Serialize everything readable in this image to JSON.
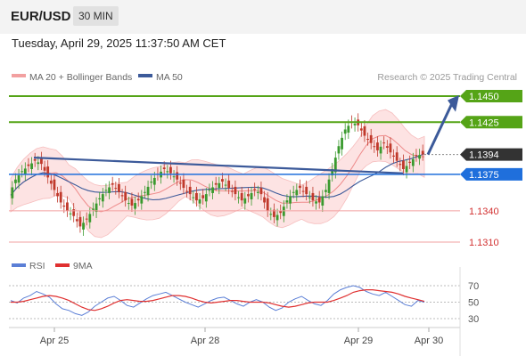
{
  "header": {
    "pair": "EUR/USD",
    "timeframe": "30 MIN",
    "datetime": "Tuesday, April 29, 2025 11:37:50 AM CET"
  },
  "legend": {
    "ma20_label": "MA 20 + Bollinger Bands",
    "ma50_label": "MA 50",
    "credit": "Research © 2025 Trading Central",
    "rsi_label": "RSI",
    "ma9_label": "9MA"
  },
  "colors": {
    "resistance_green": "#55a417",
    "support_red": "#f2a0a0",
    "ma50_blue": "#3c5a9a",
    "bollinger_fill": "#fde3e3",
    "ma20_red": "#ee8a8a",
    "current_price_bg": "#333333",
    "pivot_blue": "#1f6fdc",
    "up_candle": "#3a9a2e",
    "down_candle": "#c0392b",
    "rsi_line": "#5b7fd6",
    "rsi_ma_line": "#e03030"
  },
  "chart_data": {
    "type": "candlestick",
    "x_ticks": [
      "Apr 25",
      "Apr 28",
      "Apr 29",
      "Apr 30"
    ],
    "price_ylim": [
      1.3275,
      1.1472
    ],
    "levels": [
      {
        "name": "resistance-2",
        "value": 1.145,
        "label": "1.1450",
        "kind": "resistance"
      },
      {
        "name": "resistance-1",
        "value": 1.1425,
        "label": "1.1425",
        "kind": "resistance"
      },
      {
        "name": "current-price",
        "value": 1.1394,
        "label": "1.1394",
        "kind": "current"
      },
      {
        "name": "pivot",
        "value": 1.1375,
        "label": "1.1375",
        "kind": "pivot"
      },
      {
        "name": "support-1",
        "value": 1.134,
        "label": "1.1340",
        "kind": "support"
      },
      {
        "name": "support-2",
        "value": 1.131,
        "label": "1.1310",
        "kind": "support"
      }
    ],
    "close_path": [
      1.1355,
      1.137,
      1.1378,
      1.1383,
      1.1388,
      1.1385,
      1.1372,
      1.136,
      1.1348,
      1.134,
      1.1335,
      1.1325,
      1.1332,
      1.1342,
      1.1352,
      1.136,
      1.1365,
      1.1358,
      1.135,
      1.1345,
      1.135,
      1.1358,
      1.1368,
      1.1375,
      1.138,
      1.1376,
      1.137,
      1.1362,
      1.1356,
      1.135,
      1.1352,
      1.136,
      1.1365,
      1.1368,
      1.1362,
      1.1356,
      1.135,
      1.1354,
      1.136,
      1.1356,
      1.134,
      1.1334,
      1.1338,
      1.135,
      1.1358,
      1.1362,
      1.1356,
      1.135,
      1.1348,
      1.136,
      1.138,
      1.1402,
      1.1418,
      1.1425,
      1.1422,
      1.1412,
      1.1405,
      1.1398,
      1.1405,
      1.1396,
      1.1388,
      1.138,
      1.1386,
      1.1393,
      1.1394
    ],
    "rsi": {
      "ylim": [
        20,
        80
      ],
      "ticks": [
        70,
        50,
        30
      ],
      "rsi_values": [
        52,
        49,
        55,
        58,
        63,
        60,
        56,
        48,
        42,
        40,
        36,
        34,
        38,
        45,
        50,
        55,
        57,
        52,
        46,
        44,
        49,
        54,
        58,
        60,
        62,
        58,
        54,
        50,
        47,
        44,
        48,
        52,
        55,
        56,
        52,
        48,
        45,
        50,
        53,
        50,
        44,
        40,
        43,
        50,
        54,
        57,
        52,
        48,
        46,
        52,
        60,
        65,
        68,
        70,
        68,
        63,
        60,
        58,
        62,
        57,
        52,
        47,
        45,
        52,
        50
      ],
      "ma_values": [
        50,
        50,
        51,
        53,
        55,
        57,
        58,
        57,
        55,
        52,
        48,
        44,
        41,
        40,
        42,
        45,
        49,
        52,
        53,
        52,
        51,
        51,
        52,
        54,
        56,
        58,
        58,
        57,
        55,
        52,
        50,
        49,
        50,
        51,
        52,
        52,
        51,
        50,
        50,
        50,
        49,
        47,
        45,
        44,
        45,
        47,
        49,
        50,
        50,
        50,
        52,
        55,
        58,
        62,
        64,
        65,
        65,
        64,
        63,
        62,
        60,
        57,
        55,
        53,
        51
      ]
    }
  }
}
